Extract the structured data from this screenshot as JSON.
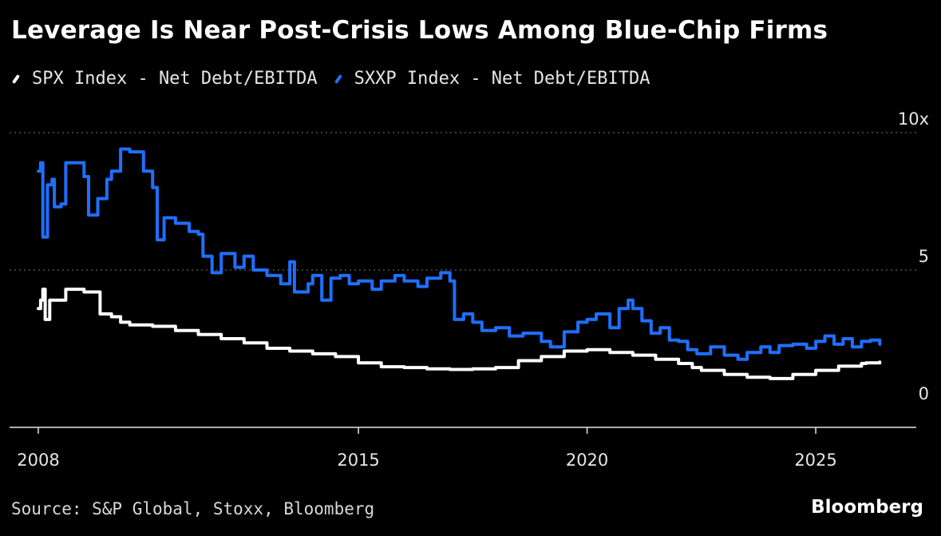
{
  "chart_data": {
    "type": "line",
    "title": "Leverage Is Near Post-Crisis Lows Among Blue-Chip Firms",
    "xlabel": "",
    "ylabel": "",
    "xlim": [
      2008.0,
      2026.5
    ],
    "ylim": [
      0,
      10
    ],
    "x_ticks": [
      2008,
      2015,
      2020,
      2025
    ],
    "y_ticks": [
      {
        "value": 0,
        "label": "0"
      },
      {
        "value": 5,
        "label": "5"
      },
      {
        "value": 10,
        "label": "10x"
      }
    ],
    "grid": "horizontal dotted",
    "legend_position": "top-left",
    "series": [
      {
        "name": "SPX Index - Net Debt/EBITDA",
        "color": "#ffffff",
        "points": [
          [
            2008.0,
            3.6
          ],
          [
            2008.05,
            3.9
          ],
          [
            2008.1,
            4.3
          ],
          [
            2008.15,
            3.2
          ],
          [
            2008.25,
            3.9
          ],
          [
            2008.5,
            3.9
          ],
          [
            2008.6,
            4.3
          ],
          [
            2008.8,
            4.3
          ],
          [
            2009.0,
            4.2
          ],
          [
            2009.3,
            4.2
          ],
          [
            2009.35,
            3.4
          ],
          [
            2009.6,
            3.3
          ],
          [
            2009.8,
            3.1
          ],
          [
            2010.0,
            3.0
          ],
          [
            2010.5,
            2.95
          ],
          [
            2011.0,
            2.8
          ],
          [
            2011.5,
            2.65
          ],
          [
            2012.0,
            2.5
          ],
          [
            2012.5,
            2.35
          ],
          [
            2013.0,
            2.15
          ],
          [
            2013.5,
            2.05
          ],
          [
            2014.0,
            1.95
          ],
          [
            2014.5,
            1.85
          ],
          [
            2015.0,
            1.62
          ],
          [
            2015.5,
            1.48
          ],
          [
            2016.0,
            1.45
          ],
          [
            2016.5,
            1.4
          ],
          [
            2017.0,
            1.38
          ],
          [
            2017.5,
            1.4
          ],
          [
            2018.0,
            1.45
          ],
          [
            2018.5,
            1.7
          ],
          [
            2019.0,
            1.85
          ],
          [
            2019.5,
            2.05
          ],
          [
            2020.0,
            2.1
          ],
          [
            2020.3,
            2.1
          ],
          [
            2020.5,
            2.0
          ],
          [
            2021.0,
            1.9
          ],
          [
            2021.5,
            1.75
          ],
          [
            2022.0,
            1.6
          ],
          [
            2022.3,
            1.45
          ],
          [
            2022.5,
            1.35
          ],
          [
            2023.0,
            1.2
          ],
          [
            2023.5,
            1.1
          ],
          [
            2024.0,
            1.05
          ],
          [
            2024.5,
            1.2
          ],
          [
            2025.0,
            1.35
          ],
          [
            2025.5,
            1.5
          ],
          [
            2026.0,
            1.6
          ],
          [
            2026.1,
            1.62
          ],
          [
            2026.4,
            1.65
          ]
        ]
      },
      {
        "name": "SXXP Index - Net Debt/EBITDA",
        "color": "#1f6fff",
        "points": [
          [
            2008.0,
            8.6
          ],
          [
            2008.05,
            8.9
          ],
          [
            2008.1,
            6.2
          ],
          [
            2008.2,
            8.1
          ],
          [
            2008.3,
            8.3
          ],
          [
            2008.35,
            7.3
          ],
          [
            2008.5,
            7.4
          ],
          [
            2008.6,
            8.9
          ],
          [
            2008.8,
            8.9
          ],
          [
            2009.0,
            8.4
          ],
          [
            2009.1,
            7.0
          ],
          [
            2009.3,
            7.6
          ],
          [
            2009.5,
            8.3
          ],
          [
            2009.6,
            8.6
          ],
          [
            2009.8,
            9.4
          ],
          [
            2010.0,
            9.3
          ],
          [
            2010.3,
            8.6
          ],
          [
            2010.5,
            8.0
          ],
          [
            2010.6,
            6.1
          ],
          [
            2010.75,
            6.9
          ],
          [
            2011.0,
            6.7
          ],
          [
            2011.3,
            6.4
          ],
          [
            2011.5,
            6.3
          ],
          [
            2011.6,
            5.5
          ],
          [
            2011.8,
            4.9
          ],
          [
            2012.0,
            5.6
          ],
          [
            2012.3,
            5.1
          ],
          [
            2012.5,
            5.5
          ],
          [
            2012.7,
            5.0
          ],
          [
            2013.0,
            4.8
          ],
          [
            2013.3,
            4.5
          ],
          [
            2013.5,
            5.3
          ],
          [
            2013.6,
            4.2
          ],
          [
            2013.9,
            4.5
          ],
          [
            2014.0,
            4.8
          ],
          [
            2014.2,
            3.9
          ],
          [
            2014.4,
            4.7
          ],
          [
            2014.6,
            4.8
          ],
          [
            2014.8,
            4.5
          ],
          [
            2015.0,
            4.6
          ],
          [
            2015.3,
            4.3
          ],
          [
            2015.5,
            4.6
          ],
          [
            2015.8,
            4.8
          ],
          [
            2016.0,
            4.6
          ],
          [
            2016.3,
            4.4
          ],
          [
            2016.5,
            4.7
          ],
          [
            2016.8,
            4.9
          ],
          [
            2017.0,
            4.6
          ],
          [
            2017.1,
            3.2
          ],
          [
            2017.3,
            3.4
          ],
          [
            2017.5,
            3.1
          ],
          [
            2017.7,
            2.8
          ],
          [
            2018.0,
            2.9
          ],
          [
            2018.3,
            2.6
          ],
          [
            2018.6,
            2.7
          ],
          [
            2019.0,
            2.4
          ],
          [
            2019.2,
            2.2
          ],
          [
            2019.5,
            2.75
          ],
          [
            2019.8,
            3.1
          ],
          [
            2020.0,
            3.2
          ],
          [
            2020.2,
            3.4
          ],
          [
            2020.5,
            2.9
          ],
          [
            2020.7,
            3.6
          ],
          [
            2020.9,
            3.9
          ],
          [
            2021.0,
            3.6
          ],
          [
            2021.2,
            3.15
          ],
          [
            2021.4,
            2.7
          ],
          [
            2021.6,
            2.9
          ],
          [
            2021.8,
            2.45
          ],
          [
            2022.0,
            2.4
          ],
          [
            2022.2,
            2.1
          ],
          [
            2022.4,
            1.95
          ],
          [
            2022.7,
            2.2
          ],
          [
            2023.0,
            1.9
          ],
          [
            2023.3,
            1.75
          ],
          [
            2023.5,
            2.0
          ],
          [
            2023.8,
            2.2
          ],
          [
            2024.0,
            2.0
          ],
          [
            2024.2,
            2.25
          ],
          [
            2024.5,
            2.3
          ],
          [
            2024.8,
            2.15
          ],
          [
            2025.0,
            2.4
          ],
          [
            2025.2,
            2.6
          ],
          [
            2025.4,
            2.3
          ],
          [
            2025.6,
            2.5
          ],
          [
            2025.8,
            2.2
          ],
          [
            2026.0,
            2.4
          ],
          [
            2026.2,
            2.45
          ],
          [
            2026.4,
            2.3
          ]
        ]
      }
    ]
  },
  "source": "Source: S&P Global, Stoxx, Bloomberg",
  "brand": "Bloomberg"
}
